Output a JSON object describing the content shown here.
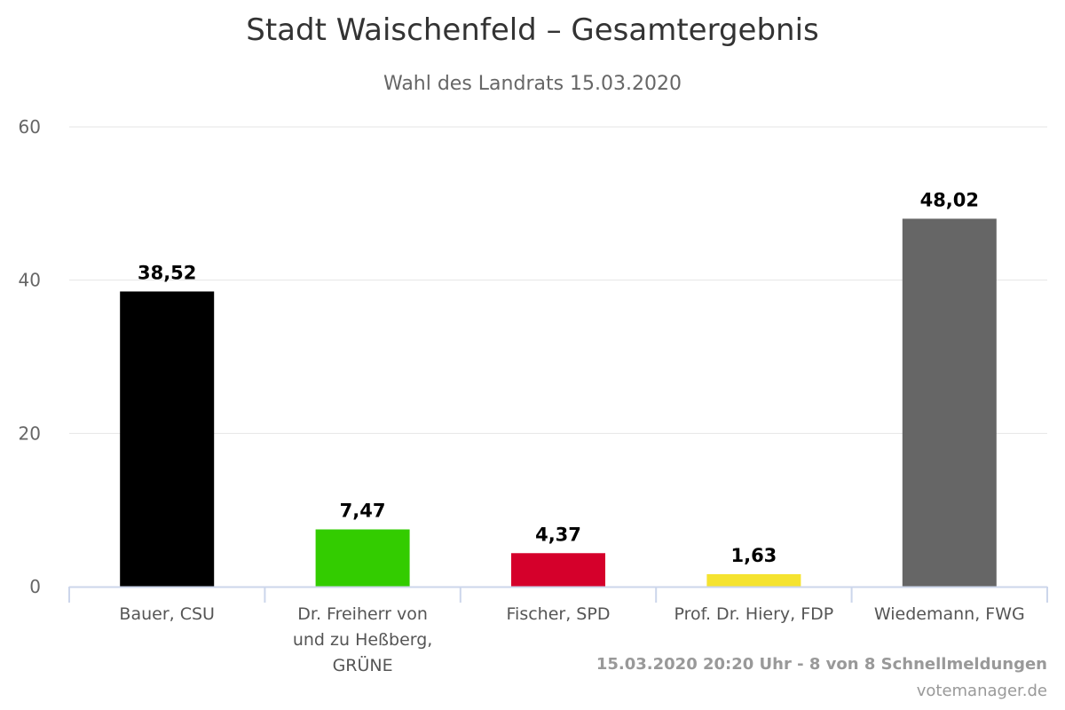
{
  "chart_data": {
    "type": "bar",
    "title": "Stadt Waischenfeld – Gesamtergebnis",
    "subtitle": "Wahl des Landrats 15.03.2020",
    "categories": [
      "Bauer, CSU",
      "Dr. Freiherr von und zu Heßberg, GRÜNE",
      "Fischer, SPD",
      "Prof. Dr. Hiery, FDP",
      "Wiedemann, FWG"
    ],
    "category_lines": [
      [
        "Bauer, CSU"
      ],
      [
        "Dr. Freiherr von",
        "und zu Heßberg,",
        "GRÜNE"
      ],
      [
        "Fischer, SPD"
      ],
      [
        "Prof. Dr. Hiery, FDP"
      ],
      [
        "Wiedemann, FWG"
      ]
    ],
    "values": [
      38.52,
      7.47,
      4.37,
      1.63,
      48.02
    ],
    "data_labels": [
      "38,52",
      "7,47",
      "4,37",
      "1,63",
      "48,02"
    ],
    "colors": [
      "#000000",
      "#33cc00",
      "#d5002b",
      "#f5e330",
      "#666666"
    ],
    "ylim": [
      0,
      60
    ],
    "yticks": [
      0,
      20,
      40,
      60
    ],
    "grid": true,
    "legend": false
  },
  "footer": {
    "status": "15.03.2020 20:20 Uhr - 8 von 8 Schnellmeldungen",
    "source": "votemanager.de"
  },
  "colors": {
    "grid": "#e6e6e6",
    "axis": "#ccd6eb"
  }
}
